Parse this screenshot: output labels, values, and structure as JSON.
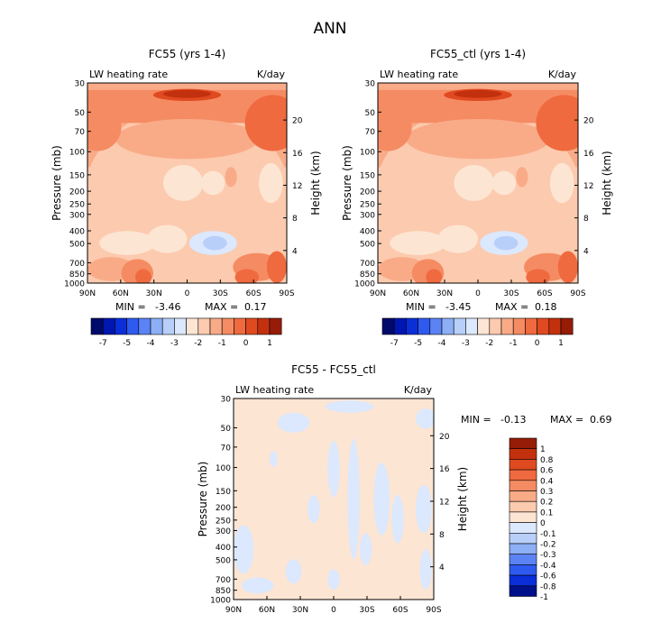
{
  "page_title": "ANN",
  "field_label": "LW heating rate",
  "units": "K/day",
  "yaxis_left_label": "Pressure (mb)",
  "yaxis_right_label": "Height (km)",
  "min_label": "MIN =",
  "max_label": "MAX =",
  "colors": {
    "contour": [
      "#000a6a",
      "#0016b0",
      "#0a2fd9",
      "#2f5af0",
      "#5b83f3",
      "#8caff6",
      "#b8cffa",
      "#dbe8fd",
      "#fde5d3",
      "#fccaae",
      "#f9ab88",
      "#f58b62",
      "#ef6a3f",
      "#e04a20",
      "#c3300e",
      "#961c08"
    ],
    "diff": [
      "#00108a",
      "#0a2fd9",
      "#2f5af0",
      "#5b83f3",
      "#8caff6",
      "#b8cffa",
      "#dbe8fd",
      "#fde5d3",
      "#fccaae",
      "#f9ab88",
      "#f58b62",
      "#ef6a3f",
      "#e04a20",
      "#c3300e",
      "#961c08"
    ]
  },
  "chart_data": [
    {
      "type": "heatmap",
      "title": "FC55 (yrs 1-4)",
      "min_text": "-3.46",
      "max_text": "0.17",
      "x_ticks": [
        "90N",
        "60N",
        "30N",
        "0",
        "30S",
        "60S",
        "90S"
      ],
      "y_ticks": [
        "30",
        "50",
        "70",
        "100",
        "150",
        "200",
        "250",
        "300",
        "400",
        "500",
        "700",
        "850",
        "1000"
      ],
      "height_ticks": [
        "20",
        "16",
        "12",
        "8",
        "4"
      ],
      "colorbar_labels": [
        "-7",
        "-5",
        "-4",
        "-3",
        "-2",
        "-1",
        "0",
        "1"
      ]
    },
    {
      "type": "heatmap",
      "title": "FC55_ctl (yrs 1-4)",
      "min_text": "-3.45",
      "max_text": "0.18",
      "x_ticks": [
        "90N",
        "60N",
        "30N",
        "0",
        "30S",
        "60S",
        "90S"
      ],
      "y_ticks": [
        "30",
        "50",
        "70",
        "100",
        "150",
        "200",
        "250",
        "300",
        "400",
        "500",
        "700",
        "850",
        "1000"
      ],
      "height_ticks": [
        "20",
        "16",
        "12",
        "8",
        "4"
      ],
      "colorbar_labels": [
        "-7",
        "-5",
        "-4",
        "-3",
        "-2",
        "-1",
        "0",
        "1"
      ]
    },
    {
      "type": "heatmap",
      "title": "FC55 - FC55_ctl",
      "min_text": "-0.13",
      "max_text": "0.69",
      "x_ticks": [
        "90N",
        "60N",
        "30N",
        "0",
        "30S",
        "60S",
        "90S"
      ],
      "y_ticks": [
        "30",
        "50",
        "70",
        "100",
        "150",
        "200",
        "250",
        "300",
        "400",
        "500",
        "700",
        "850",
        "1000"
      ],
      "height_ticks": [
        "20",
        "16",
        "12",
        "8",
        "4"
      ],
      "colorbar_labels": [
        "1",
        "0.8",
        "0.6",
        "0.4",
        "0.3",
        "0.2",
        "0.1",
        "0",
        "-0.1",
        "-0.2",
        "-0.3",
        "-0.4",
        "-0.6",
        "-0.8",
        "-1"
      ]
    }
  ]
}
